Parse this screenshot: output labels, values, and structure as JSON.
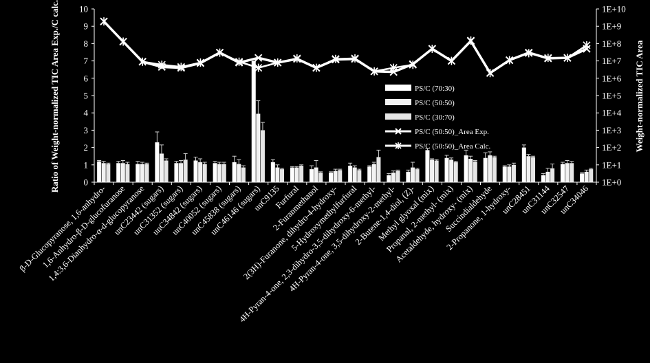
{
  "chart_data": {
    "type": "bar",
    "colors": {
      "background": "#000000",
      "bars": [
        "#ffffff",
        "#f2f2f2",
        "#e6e6e6"
      ],
      "lines": "#ffffff"
    },
    "ylabel": "Ratio of Weight-normalized TIC Area Exp./C calc.",
    "y2label": "Weight-normalized TIC Area",
    "ylim": [
      0,
      10
    ],
    "yticks": [
      "0",
      "1",
      "2",
      "3",
      "4",
      "5",
      "6",
      "7",
      "8",
      "9",
      "10"
    ],
    "y2_scale": "log",
    "y2lim": [
      1,
      10000000000
    ],
    "y2ticks": [
      "1E+0",
      "1E+1",
      "1E+2",
      "1E+3",
      "1E+4",
      "1E+5",
      "1E+6",
      "1E+7",
      "1E+8",
      "1E+9",
      "1E+10"
    ],
    "legend_position": "center-right",
    "categories": [
      "β-D-Glucopyranose, 1,6-anhydro-",
      "1,6-Anhydro-β-D-glucofuranose",
      "1,4:3,6-Dianhydro-α-d-glucopyranose",
      "unC23442 (sugars)",
      "unC31352 (sugars)",
      "unC34842 (sugars)",
      "unC40052 (sugars)",
      "unC45838 (sugars)",
      "unC46146 (sugars)",
      "unC9135",
      "Furfural",
      "2-Furanmethanol",
      "2(3H)-Furanone, dihydro-4-hydroxy-",
      "5-Hydroxymethylfurfural",
      "4H-Pyran-4-one, 2,3-dihydro-3,5-dihydroxy-6-methyl-",
      "4H-Pyran-4-one, 3,5-dihydroxy-2-methyl-",
      "2-Butene-1,4-diol, (Z)-",
      "Methyl glyoxal (mix)",
      "Propanal, 2-methyl- (mix)",
      "Acetaldehyde, hydroxy- (mix)",
      "Succindialdehyde",
      "2-Propanone, 1-hydroxy-",
      "unC28451",
      "unC31144",
      "unC32547",
      "unC34046"
    ],
    "series": [
      {
        "name": "PS/C (70:30)",
        "type": "bar",
        "axis": "left",
        "values": [
          1.2,
          1.1,
          1.05,
          2.3,
          1.1,
          1.25,
          1.1,
          1.15,
          7.0,
          1.15,
          0.85,
          0.75,
          0.55,
          0.95,
          0.9,
          0.4,
          0.6,
          1.85,
          1.4,
          1.55,
          1.4,
          0.9,
          2.0,
          0.4,
          1.05,
          0.5
        ],
        "errors": [
          0.05,
          0.1,
          0.15,
          0.6,
          0.1,
          0.2,
          0.1,
          0.35,
          0.0,
          0.15,
          0.05,
          0.2,
          0.05,
          0.15,
          0.05,
          0.1,
          0.1,
          0.1,
          0.15,
          0.3,
          0.3,
          0.05,
          0.15,
          0.1,
          0.1,
          0.05
        ]
      },
      {
        "name": "PS/C (50:50)",
        "type": "bar",
        "axis": "left",
        "values": [
          1.1,
          1.1,
          1.05,
          1.65,
          1.1,
          1.15,
          1.05,
          1.05,
          3.95,
          0.85,
          0.85,
          0.85,
          0.65,
          0.85,
          1.05,
          0.55,
          0.85,
          1.3,
          1.3,
          1.35,
          1.55,
          0.9,
          1.5,
          0.6,
          1.1,
          0.6
        ],
        "errors": [
          0.1,
          0.15,
          0.1,
          0.5,
          0.15,
          0.2,
          0.1,
          0.25,
          0.75,
          0.15,
          0.05,
          0.4,
          0.1,
          0.1,
          0.1,
          0.1,
          0.3,
          0.05,
          0.1,
          0.15,
          0.2,
          0.1,
          0.1,
          0.2,
          0.15,
          0.1
        ]
      },
      {
        "name": "PS/C (30:70)",
        "type": "bar",
        "axis": "left",
        "values": [
          1.05,
          1.05,
          1.05,
          1.25,
          1.3,
          1.05,
          1.05,
          0.85,
          3.0,
          0.75,
          0.95,
          0.55,
          0.7,
          0.7,
          1.45,
          0.65,
          0.75,
          1.25,
          1.15,
          1.2,
          1.45,
          1.0,
          1.45,
          0.8,
          1.1,
          0.75
        ],
        "errors": [
          0.05,
          0.1,
          0.05,
          0.1,
          0.35,
          0.1,
          0.1,
          0.1,
          0.45,
          0.05,
          0.05,
          0.05,
          0.05,
          0.05,
          0.4,
          0.05,
          0.05,
          0.05,
          0.05,
          0.05,
          0.05,
          0.1,
          0.05,
          0.25,
          0.1,
          0.05
        ]
      },
      {
        "name": "PS/C (50:50)_Area Exp.",
        "type": "line",
        "axis": "right",
        "marker": "x",
        "values": [
          1900000000,
          130000000,
          9000000,
          4500000,
          4000000,
          7500000,
          30000000,
          8000000,
          15000000,
          8000000,
          13000000,
          4000000,
          12000000,
          13000000,
          2500000,
          2300000,
          6500000,
          50000000,
          10000000,
          140000000,
          2000000,
          11000000,
          30000000,
          14000000,
          15000000,
          50000000
        ]
      },
      {
        "name": "PS/C (50:50)_Area Calc.",
        "type": "line",
        "axis": "right",
        "marker": "asterisk",
        "values": [
          1900000000,
          130000000,
          9000000,
          6000000,
          4500000,
          8000000,
          30000000,
          9000000,
          4000000,
          8000000,
          14000000,
          4000000,
          13000000,
          14000000,
          2500000,
          4000000,
          6000000,
          50000000,
          10000000,
          150000000,
          2000000,
          11000000,
          28000000,
          15000000,
          15000000,
          80000000
        ]
      }
    ]
  }
}
